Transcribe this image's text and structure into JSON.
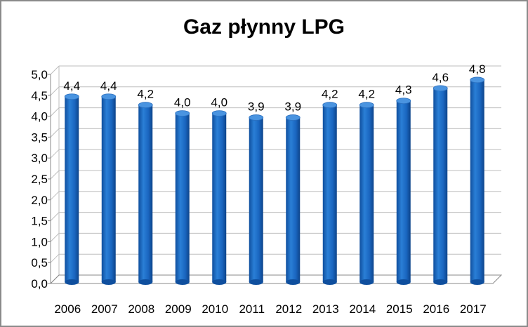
{
  "chart_data": {
    "type": "bar",
    "title": "Gaz płynny LPG",
    "categories": [
      "2006",
      "2007",
      "2008",
      "2009",
      "2010",
      "2011",
      "2012",
      "2013",
      "2014",
      "2015",
      "2016",
      "2017"
    ],
    "values": [
      4.4,
      4.4,
      4.2,
      4.0,
      4.0,
      3.9,
      3.9,
      4.2,
      4.2,
      4.3,
      4.6,
      4.8
    ],
    "data_labels": [
      "4,4",
      "4,4",
      "4,2",
      "4,0",
      "4,0",
      "3,9",
      "3,9",
      "4,2",
      "4,2",
      "4,3",
      "4,6",
      "4,8"
    ],
    "yticks": [
      "0,0",
      "0,5",
      "1,0",
      "1,5",
      "2,0",
      "2,5",
      "3,0",
      "3,5",
      "4,0",
      "4,5",
      "5,0"
    ],
    "ylim": [
      0,
      5
    ],
    "grid": true,
    "legend": "none",
    "bar_color": "#1F6CC4",
    "bar_top_color": "#4A94E0"
  }
}
